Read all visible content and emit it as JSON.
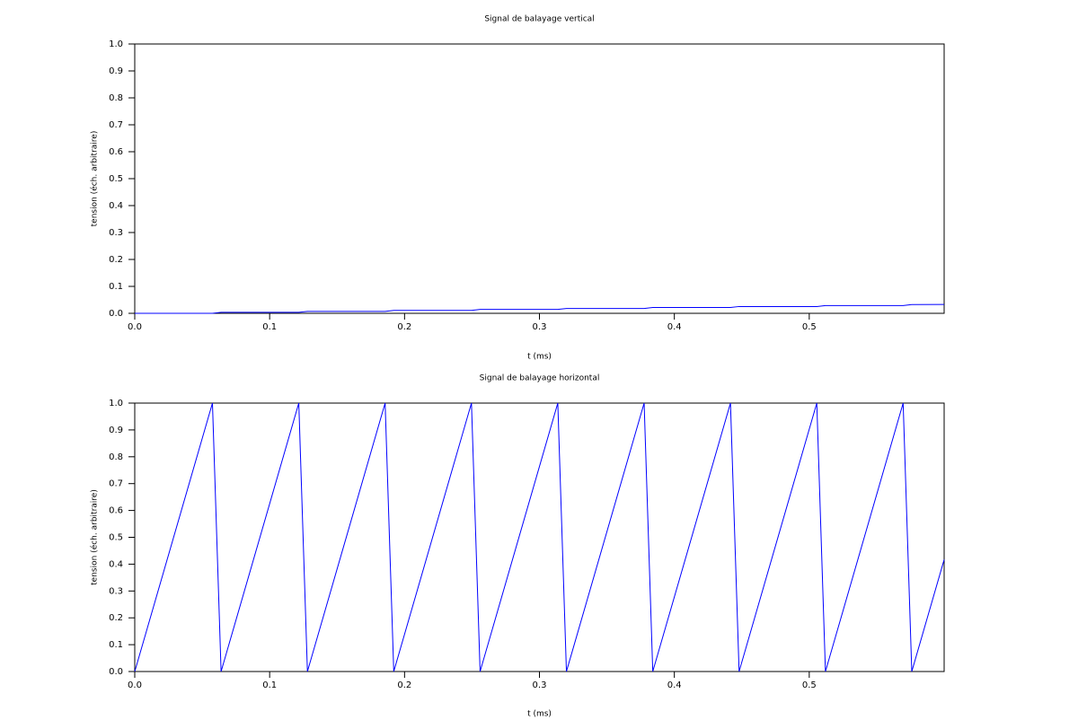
{
  "chart_data": [
    {
      "type": "line",
      "title": "Signal de balayage vertical",
      "x_label": "t (ms)",
      "y_label": "tension (éch. arbitraire)",
      "x": [
        0,
        0.0576,
        0.064,
        0.1216,
        0.128,
        0.1856,
        0.192,
        0.2496,
        0.256,
        0.3136,
        0.32,
        0.3776,
        0.384,
        0.4416,
        0.448,
        0.5056,
        0.512,
        0.5696,
        0.576,
        0.6
      ],
      "series": [
        {
          "color": "#0000ff",
          "values": [
            0,
            0,
            0.0036,
            0.0036,
            0.0072,
            0.0072,
            0.0108,
            0.0108,
            0.0144,
            0.0144,
            0.018,
            0.018,
            0.0216,
            0.0216,
            0.0252,
            0.0252,
            0.0288,
            0.0288,
            0.0324,
            0.033
          ]
        }
      ],
      "xlim": [
        0,
        0.6
      ],
      "xticks": [
        {
          "value": 0,
          "label": "0.0"
        },
        0.1,
        0.2,
        0.3,
        0.4,
        0.5
      ],
      "ylim": [
        0,
        1
      ],
      "yticks": [
        {
          "value": 0,
          "label": "0.0"
        },
        0.1,
        0.2,
        0.3,
        0.4,
        0.5,
        0.6,
        0.7,
        0.8,
        0.9,
        {
          "value": 1,
          "label": "1.0"
        }
      ]
    },
    {
      "type": "line",
      "title": "Signal de balayage horizontal",
      "x_label": "t (ms)",
      "y_label": "tension (éch. arbitraire)",
      "x": [
        0,
        0.0576,
        0.064,
        0.1216,
        0.128,
        0.1856,
        0.192,
        0.2496,
        0.256,
        0.3136,
        0.32,
        0.3776,
        0.384,
        0.4416,
        0.448,
        0.5056,
        0.512,
        0.5696,
        0.576,
        0.6
      ],
      "series": [
        {
          "color": "#0000ff",
          "values": [
            0,
            1,
            0,
            1,
            0,
            1,
            0,
            1,
            0,
            1,
            0,
            1,
            0,
            1,
            0,
            1,
            0,
            1,
            0,
            0.417
          ]
        }
      ],
      "xlim": [
        0,
        0.6
      ],
      "xticks": [
        {
          "value": 0,
          "label": "0.0"
        },
        0.1,
        0.2,
        0.3,
        0.4,
        0.5
      ],
      "ylim": [
        0,
        1
      ],
      "yticks": [
        {
          "value": 0,
          "label": "0.0"
        },
        0.1,
        0.2,
        0.3,
        0.4,
        0.5,
        0.6,
        0.7,
        0.8,
        0.9,
        {
          "value": 1,
          "label": "1.0"
        }
      ]
    }
  ]
}
